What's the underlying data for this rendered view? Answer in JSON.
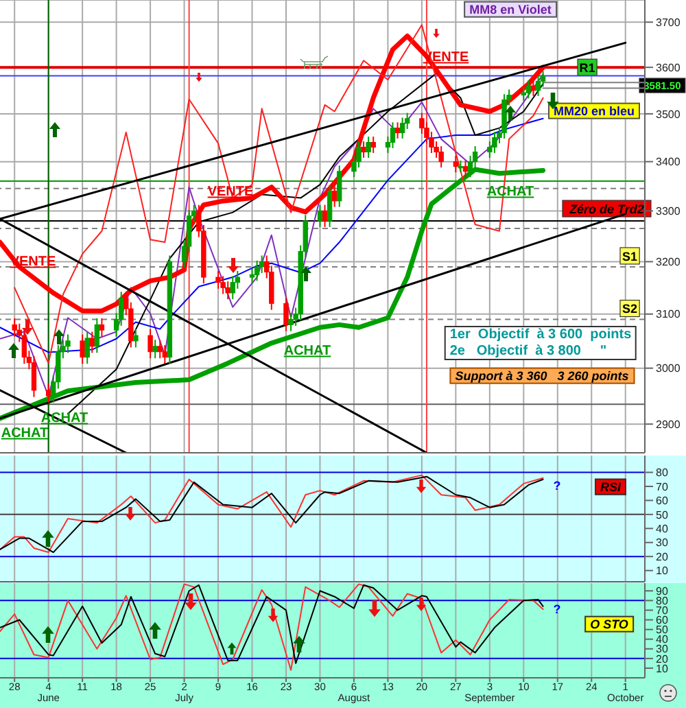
{
  "chart_data": [
    {
      "type": "candlestick",
      "log": true,
      "grid": true,
      "tick_labels": "y",
      "marker": "none",
      "xlim": [
        "--05-25",
        "--10-05"
      ],
      "xticks": [
        {
          "value": "--05-28",
          "label": "28"
        },
        {
          "value": "--06-04",
          "label": "4\nJune"
        },
        {
          "value": "--06-11",
          "label": "11"
        },
        {
          "value": "--06-18",
          "label": "18"
        },
        {
          "value": "--06-25",
          "label": "25"
        },
        {
          "value": "--07-02",
          "label": "2\nJuly"
        },
        {
          "value": "--07-09",
          "label": "9"
        },
        {
          "value": "--07-16",
          "label": "16"
        },
        {
          "value": "--07-23",
          "label": "23"
        },
        {
          "value": "--07-30",
          "label": "30"
        },
        {
          "value": "--08-06",
          "label": "6\nAugust"
        },
        {
          "value": "--08-13",
          "label": "13"
        },
        {
          "value": "--08-20",
          "label": "20"
        },
        {
          "value": "--08-27",
          "label": "27"
        },
        {
          "value": "--09-03",
          "label": "3\nSeptember"
        },
        {
          "value": "--09-10",
          "label": "10"
        },
        {
          "value": "--09-17",
          "label": "17"
        },
        {
          "value": "--09-24",
          "label": "24"
        },
        {
          "value": "--10-01",
          "label": "1\nOctober"
        }
      ],
      "ylim": [
        2850,
        3750
      ],
      "yticks": [
        2900,
        3000,
        3100,
        3200,
        3300,
        3400,
        3500,
        3600,
        3700
      ],
      "x": [
        "--05-28",
        "--05-29",
        "--05-30",
        "--05-31",
        "--06-01",
        "--06-04",
        "--06-05",
        "--06-06",
        "--06-07",
        "--06-08",
        "--06-11",
        "--06-12",
        "--06-13",
        "--06-14",
        "--06-15",
        "--06-18",
        "--06-19",
        "--06-20",
        "--06-21",
        "--06-22",
        "--06-25",
        "--06-26",
        "--06-27",
        "--06-28",
        "--06-29",
        "--07-02",
        "--07-03",
        "--07-04",
        "--07-05",
        "--07-06",
        "--07-09",
        "--07-10",
        "--07-11",
        "--07-12",
        "--07-13",
        "--07-16",
        "--07-17",
        "--07-18",
        "--07-19",
        "--07-20",
        "--07-23",
        "--07-24",
        "--07-25",
        "--07-26",
        "--07-27",
        "--07-30",
        "--07-31",
        "--08-01",
        "--08-02",
        "--08-03",
        "--08-06",
        "--08-07",
        "--08-08",
        "--08-09",
        "--08-10",
        "--08-13",
        "--08-14",
        "--08-15",
        "--08-16",
        "--08-17",
        "--08-20",
        "--08-21",
        "--08-22",
        "--08-23",
        "--08-24",
        "--08-27",
        "--08-28",
        "--08-29",
        "--08-30",
        "--08-31",
        "--09-03",
        "--09-04",
        "--09-05",
        "--09-06",
        "--09-07",
        "--09-10",
        "--09-11",
        "--09-12",
        "--09-13",
        "--09-14"
      ],
      "ohlc": [
        [
          3080,
          3092,
          3058,
          3070
        ],
        [
          3070,
          3082,
          3048,
          3060
        ],
        [
          3060,
          3072,
          3008,
          3020
        ],
        [
          3020,
          3032,
          2998,
          3010
        ],
        [
          3010,
          3022,
          2948,
          2960
        ],
        [
          2960,
          2972,
          2938,
          2950
        ],
        [
          2950,
          2987,
          2938,
          2975
        ],
        [
          2975,
          3042,
          2963,
          3030
        ],
        [
          3030,
          3052,
          3018,
          3040
        ],
        [
          3040,
          3062,
          3028,
          3050
        ],
        [
          3050,
          3062,
          3008,
          3020
        ],
        [
          3020,
          3067,
          3008,
          3055
        ],
        [
          3055,
          3067,
          3028,
          3040
        ],
        [
          3040,
          3092,
          3028,
          3080
        ],
        [
          3080,
          3092,
          3058,
          3070
        ],
        [
          3070,
          3102,
          3058,
          3090
        ],
        [
          3090,
          3142,
          3078,
          3130
        ],
        [
          3130,
          3142,
          3098,
          3110
        ],
        [
          3110,
          3122,
          3038,
          3050
        ],
        [
          3050,
          3072,
          3038,
          3060
        ],
        [
          3060,
          3072,
          3018,
          3030
        ],
        [
          3030,
          3052,
          3018,
          3040
        ],
        [
          3040,
          3052,
          3018,
          3030
        ],
        [
          3030,
          3042,
          3008,
          3020
        ],
        [
          3020,
          3212,
          3008,
          3200
        ],
        [
          3200,
          3242,
          3188,
          3230
        ],
        [
          3230,
          3302,
          3218,
          3290
        ],
        [
          3290,
          3312,
          3278,
          3300
        ],
        [
          3300,
          3312,
          3248,
          3260
        ],
        [
          3260,
          3272,
          3158,
          3170
        ],
        [
          3170,
          3182,
          3148,
          3160
        ],
        [
          3160,
          3172,
          3138,
          3150
        ],
        [
          3150,
          3162,
          3128,
          3140
        ],
        [
          3140,
          3172,
          3128,
          3160
        ],
        [
          3160,
          3182,
          3148,
          3170
        ],
        [
          3170,
          3187,
          3158,
          3175
        ],
        [
          3175,
          3202,
          3163,
          3190
        ],
        [
          3190,
          3212,
          3178,
          3200
        ],
        [
          3200,
          3212,
          3168,
          3180
        ],
        [
          3180,
          3192,
          3108,
          3120
        ],
        [
          3120,
          3132,
          3068,
          3080
        ],
        [
          3080,
          3102,
          3068,
          3090
        ],
        [
          3090,
          3112,
          3078,
          3100
        ],
        [
          3100,
          3232,
          3088,
          3220
        ],
        [
          3220,
          3292,
          3208,
          3280
        ],
        [
          3280,
          3312,
          3268,
          3300
        ],
        [
          3300,
          3312,
          3268,
          3280
        ],
        [
          3280,
          3352,
          3268,
          3340
        ],
        [
          3340,
          3352,
          3308,
          3320
        ],
        [
          3320,
          3392,
          3308,
          3380
        ],
        [
          3380,
          3412,
          3368,
          3400
        ],
        [
          3400,
          3442,
          3388,
          3430
        ],
        [
          3430,
          3442,
          3408,
          3420
        ],
        [
          3420,
          3452,
          3408,
          3440
        ],
        [
          3440,
          3452,
          3418,
          3430
        ],
        [
          3430,
          3452,
          3418,
          3440
        ],
        [
          3440,
          3482,
          3428,
          3470
        ],
        [
          3470,
          3482,
          3448,
          3460
        ],
        [
          3460,
          3492,
          3448,
          3480
        ],
        [
          3480,
          3502,
          3468,
          3490
        ],
        [
          3490,
          3502,
          3458,
          3470
        ],
        [
          3470,
          3482,
          3438,
          3450
        ],
        [
          3450,
          3462,
          3418,
          3430
        ],
        [
          3430,
          3442,
          3408,
          3420
        ],
        [
          3420,
          3432,
          3388,
          3400
        ],
        [
          3400,
          3412,
          3378,
          3390
        ],
        [
          3390,
          3402,
          3378,
          3390
        ],
        [
          3390,
          3402,
          3368,
          3380
        ],
        [
          3380,
          3412,
          3368,
          3400
        ],
        [
          3400,
          3432,
          3388,
          3420
        ],
        [
          3420,
          3442,
          3408,
          3430
        ],
        [
          3430,
          3462,
          3418,
          3450
        ],
        [
          3450,
          3472,
          3438,
          3460
        ],
        [
          3460,
          3542,
          3448,
          3530
        ],
        [
          3530,
          3552,
          3518,
          3540
        ],
        [
          3540,
          3557,
          3528,
          3545
        ],
        [
          3545,
          3572,
          3533,
          3560
        ],
        [
          3560,
          3572,
          3538,
          3550
        ],
        [
          3550,
          3582,
          3538,
          3570
        ],
        [
          3570,
          3592,
          3558,
          3581.5
        ]
      ],
      "colors": [
        "#ff0000",
        "#ff0000",
        "#ff0000",
        "#ff0000",
        "#ff0000",
        "#ff0000",
        "#00a000",
        "#00a000",
        "#00a000",
        "#00a000",
        "#ff0000",
        "#00a000",
        "#ff0000",
        "#00a000",
        "#ff0000",
        "#00a000",
        "#00a000",
        "#ff0000",
        "#ff0000",
        "#00a000",
        "#ff0000",
        "#00a000",
        "#ff0000",
        "#ff0000",
        "#00a000",
        "#00a000",
        "#00a000",
        "#00a000",
        "#ff0000",
        "#ff0000",
        "#ff0000",
        "#ff0000",
        "#ff0000",
        "#00a000",
        "#00a000",
        "#00a000",
        "#00a000",
        "#00a000",
        "#ff0000",
        "#ff0000",
        "#ff0000",
        "#00a000",
        "#00a000",
        "#00a000",
        "#00a000",
        "#00a000",
        "#ff0000",
        "#00a000",
        "#ff0000",
        "#00a000",
        "#00a000",
        "#00a000",
        "#ff0000",
        "#00a000",
        "#ff0000",
        "#00a000",
        "#00a000",
        "#ff0000",
        "#00a000",
        "#00a000",
        "#ff0000",
        "#ff0000",
        "#ff0000",
        "#ff0000",
        "#ff0000",
        "#ff0000",
        "#00a000",
        "#ff0000",
        "#00a000",
        "#00a000",
        "#00a000",
        "#00a000",
        "#00a000",
        "#00a000",
        "#00a000",
        "#00a000",
        "#00a000",
        "#ff0000",
        "#00a000",
        "#00a000"
      ],
      "series": [
        {
          "type": "line",
          "color": "#8030c0",
          "x": [
            "--05-25",
            "--05-30",
            "--06-04",
            "--06-08",
            "--06-14",
            "--06-18",
            "--06-21",
            "--06-25",
            "--06-28",
            "--07-03",
            "--07-05",
            "--07-12",
            "--07-17",
            "--07-20",
            "--07-24",
            "--07-30",
            "--08-02",
            "--08-07",
            "--08-10",
            "--08-15",
            "--08-20",
            "--08-24",
            "--08-30",
            "--09-04",
            "--09-10",
            "--09-14"
          ],
          "values": [
            3054,
            3067,
            2949,
            3093,
            3054,
            3067,
            3150,
            3101,
            3024,
            3348,
            3287,
            3113,
            3170,
            3252,
            3093,
            3326,
            3390,
            3447,
            3511,
            3461,
            3525,
            3447,
            3395,
            3438,
            3525,
            3585
          ]
        },
        {
          "type": "line",
          "color": "#0000ff",
          "x": [
            "--05-25",
            "--06-04",
            "--06-13",
            "--06-18",
            "--06-22",
            "--06-27",
            "--06-29",
            "--07-05",
            "--07-12",
            "--07-17",
            "--07-20",
            "--07-26",
            "--07-30",
            "--08-03",
            "--08-13",
            "--08-21",
            "--08-27",
            "--09-03",
            "--09-06",
            "--09-14"
          ],
          "values": [
            3075,
            3029,
            3034,
            3054,
            3085,
            3072,
            3093,
            3152,
            3170,
            3192,
            3197,
            3179,
            3197,
            3238,
            3362,
            3447,
            3455,
            3455,
            3467,
            3490
          ]
        },
        {
          "type": "line",
          "color": "#000000",
          "x": [
            "--06-08",
            "--06-18",
            "--06-25",
            "--06-29",
            "--07-05",
            "--07-12",
            "--07-18",
            "--07-26",
            "--07-30",
            "--08-03",
            "--08-07",
            "--08-13",
            "--08-23",
            "--08-28",
            "--08-31",
            "--09-05",
            "--09-10",
            "--09-14"
          ],
          "values": [
            2918,
            2998,
            3127,
            3206,
            3278,
            3297,
            3333,
            3326,
            3353,
            3410,
            3447,
            3505,
            3587,
            3534,
            3455,
            3470,
            3505,
            3564
          ]
        },
        {
          "type": "line",
          "color": "#ff0000",
          "x": [
            "--05-25",
            "--05-29",
            "--06-05",
            "--06-11",
            "--06-15",
            "--06-18",
            "--06-21",
            "--06-25",
            "--06-29",
            "--07-02",
            "--07-03",
            "--07-06",
            "--07-10",
            "--07-16",
            "--07-20",
            "--07-24",
            "--07-27",
            "--07-31",
            "--08-06",
            "--08-10",
            "--08-14",
            "--08-17",
            "--08-21",
            "--08-24",
            "--08-28",
            "--09-03",
            "--09-06",
            "--09-11",
            "--09-14"
          ],
          "values": [
            3238,
            3190,
            3140,
            3106,
            3106,
            3119,
            3145,
            3163,
            3170,
            3184,
            3265,
            3312,
            3320,
            3326,
            3348,
            3307,
            3298,
            3333,
            3404,
            3534,
            3639,
            3669,
            3624,
            3579,
            3519,
            3505,
            3519,
            3564,
            3600
          ]
        },
        {
          "type": "line",
          "color": "#00a000",
          "x": [
            "--05-25",
            "--06-08",
            "--06-22",
            "--07-03",
            "--07-11",
            "--07-20",
            "--07-30",
            "--08-03",
            "--08-07",
            "--08-13",
            "--08-17",
            "--08-20",
            "--08-22",
            "--08-27",
            "--08-31",
            "--09-05",
            "--09-14"
          ],
          "values": [
            2910,
            2959,
            2974,
            2979,
            3009,
            3046,
            3075,
            3080,
            3075,
            3093,
            3170,
            3260,
            3314,
            3353,
            3384,
            3376,
            3382
          ]
        },
        {
          "type": "line",
          "color": "#ff2020",
          "x": [
            "--05-28",
            "--06-04",
            "--06-07",
            "--06-11",
            "--06-15",
            "--06-20",
            "--06-25",
            "--06-28",
            "--07-03",
            "--07-09",
            "--07-12",
            "--07-16",
            "--07-18",
            "--07-24",
            "--07-31",
            "--08-02",
            "--08-08",
            "--08-13",
            "--08-20",
            "--08-23",
            "--08-27",
            "--08-31",
            "--09-05",
            "--09-07",
            "--09-12",
            "--09-14"
          ],
          "values": [
            3150,
            3009,
            3137,
            3215,
            3260,
            3461,
            3243,
            3238,
            3531,
            3438,
            3326,
            3353,
            3511,
            3297,
            3519,
            3505,
            3615,
            3573,
            3694,
            3573,
            3418,
            3273,
            3260,
            3447,
            3496,
            3534
          ]
        },
        {
          "type": "line",
          "color": "#000000",
          "x": [
            "--05-25",
            "--10-01"
          ],
          "values": [
            3284,
            3654
          ]
        },
        {
          "type": "line",
          "color": "#000000",
          "x": [
            "--05-25",
            "--10-01"
          ],
          "values": [
            2910,
            3294
          ]
        },
        {
          "type": "line",
          "color": "#000000",
          "x": [
            "--05-25",
            "--08-21"
          ],
          "values": [
            3284,
            2850
          ]
        },
        {
          "type": "line",
          "color": "#000000",
          "x": [
            "--05-25",
            "--06-20"
          ],
          "values": [
            2960,
            2850
          ]
        },
        {
          "type": "line",
          "color": "#808080",
          "x": [
            "--09-14",
            "--10-05"
          ],
          "values": [
            3567,
            3567
          ]
        },
        {
          "type": "line",
          "color": "#808080",
          "x": [
            "--09-14",
            "--10-05"
          ],
          "values": [
            3555,
            3555
          ]
        }
      ],
      "ref_lines": [
        {
          "axis": "y",
          "value": 3600,
          "label": "R1",
          "color": "#dd0000"
        },
        {
          "axis": "y",
          "value": 3581.5,
          "label": "3581.50",
          "color": "#4040ff"
        },
        {
          "axis": "y",
          "value": 3360,
          "color": "#00a000"
        },
        {
          "axis": "y",
          "value": 3280,
          "label": "Zéro de Trd2",
          "color": "#000000"
        },
        {
          "axis": "y",
          "value": 3345,
          "color": "#808080",
          "line_style": "dashed"
        },
        {
          "axis": "y",
          "value": 3265,
          "color": "#808080",
          "line_style": "dashed"
        },
        {
          "axis": "y",
          "value": 3190,
          "label": "S1",
          "color": "#808080",
          "line_style": "dashed"
        },
        {
          "axis": "y",
          "value": 3090,
          "label": "S2",
          "color": "#808080",
          "line_style": "dashed"
        },
        {
          "axis": "y",
          "value": 2935,
          "color": "#606060"
        },
        {
          "axis": "x",
          "value": "--06-04",
          "color": "#006000"
        },
        {
          "axis": "x",
          "value": "--07-03",
          "color": "#ff4040"
        },
        {
          "axis": "x",
          "value": "--08-21",
          "color": "#ff4040"
        }
      ],
      "annotations": [
        "MM8 en Violet",
        "MM20 en bleu",
        "1er  Objectif  à 3 600  points\n2e   Objectif  à 3 800     \"",
        "Support à 3 360   3 260 points",
        "VENTE",
        "VENTE",
        "VENTE",
        "ACHAT",
        "ACHAT",
        "ACHAT",
        "ACHAT"
      ]
    },
    {
      "type": "line",
      "title": "RSI",
      "grid": "x",
      "tick_labels": "y",
      "marker": "none",
      "xlim": [
        "--05-25",
        "--10-05"
      ],
      "xticks": [
        {
          "value": "--05-28",
          "label": "28"
        },
        {
          "value": "--06-04",
          "label": "4\nJune"
        },
        {
          "value": "--06-11",
          "label": "11"
        },
        {
          "value": "--06-18",
          "label": "18"
        },
        {
          "value": "--06-25",
          "label": "25"
        },
        {
          "value": "--07-02",
          "label": "2\nJuly"
        },
        {
          "value": "--07-09",
          "label": "9"
        },
        {
          "value": "--07-16",
          "label": "16"
        },
        {
          "value": "--07-23",
          "label": "23"
        },
        {
          "value": "--07-30",
          "label": "30"
        },
        {
          "value": "--08-06",
          "label": "6\nAugust"
        },
        {
          "value": "--08-13",
          "label": "13"
        },
        {
          "value": "--08-20",
          "label": "20"
        },
        {
          "value": "--08-27",
          "label": "27"
        },
        {
          "value": "--09-03",
          "label": "3\nSeptember"
        },
        {
          "value": "--09-10",
          "label": "10"
        },
        {
          "value": "--09-17",
          "label": "17"
        },
        {
          "value": "--09-24",
          "label": "24"
        },
        {
          "value": "--10-01",
          "label": "1\nOctober"
        }
      ],
      "ylim": [
        2,
        92
      ],
      "yticks": [
        10,
        20,
        30,
        40,
        50,
        60,
        70,
        80
      ],
      "series": [
        {
          "color": "#ff3030",
          "x": [
            "--05-25",
            "--05-28",
            "--05-30",
            "--06-01",
            "--06-04",
            "--06-08",
            "--06-14",
            "--06-19",
            "--06-21",
            "--06-26",
            "--06-28",
            "--07-03",
            "--07-09",
            "--07-13",
            "--07-19",
            "--07-24",
            "--07-27",
            "--07-30",
            "--08-02",
            "--08-08",
            "--08-14",
            "--08-20",
            "--08-24",
            "--08-29",
            "--08-31",
            "--09-05",
            "--09-10",
            "--09-14"
          ],
          "values": [
            25,
            34,
            34,
            26,
            23,
            47,
            44,
            57,
            63,
            44,
            46,
            75,
            57,
            54,
            66,
            41,
            64,
            67,
            64,
            74,
            73,
            78,
            64,
            62,
            53,
            57,
            72,
            76
          ]
        },
        {
          "color": "#000000",
          "x": [
            "--05-25",
            "--05-29",
            "--05-31",
            "--06-04",
            "--06-05",
            "--06-11",
            "--06-15",
            "--06-20",
            "--06-22",
            "--06-27",
            "--06-29",
            "--07-04",
            "--07-10",
            "--07-16",
            "--07-20",
            "--07-25",
            "--07-30",
            "--07-31",
            "--08-03",
            "--08-09",
            "--08-15",
            "--08-21",
            "--08-27",
            "--08-30",
            "--09-03",
            "--09-06",
            "--09-11",
            "--09-14"
          ],
          "values": [
            25,
            33,
            33,
            25,
            23,
            45,
            45,
            55,
            61,
            45,
            46,
            73,
            57,
            55,
            65,
            44,
            64,
            66,
            65,
            74,
            73,
            77,
            64,
            62,
            55,
            57,
            71,
            75
          ]
        }
      ],
      "ref_lines": [
        {
          "axis": "y",
          "value": 80,
          "color": "#0000dd"
        },
        {
          "axis": "y",
          "value": 50,
          "color": "#404040"
        },
        {
          "axis": "y",
          "value": 20,
          "color": "#0000dd"
        }
      ],
      "annotations": [
        "?"
      ]
    },
    {
      "type": "line",
      "title": "O STO",
      "grid": "x",
      "marker": "none",
      "xlim": [
        "--05-25",
        "--10-05"
      ],
      "xticks": [
        {
          "value": "--05-28",
          "label": "28"
        },
        {
          "value": "--06-04",
          "label": "4\nJune"
        },
        {
          "value": "--06-11",
          "label": "11"
        },
        {
          "value": "--06-18",
          "label": "18"
        },
        {
          "value": "--06-25",
          "label": "25"
        },
        {
          "value": "--07-02",
          "label": "2\nJuly"
        },
        {
          "value": "--07-09",
          "label": "9"
        },
        {
          "value": "--07-16",
          "label": "16"
        },
        {
          "value": "--07-23",
          "label": "23"
        },
        {
          "value": "--07-30",
          "label": "30"
        },
        {
          "value": "--08-06",
          "label": "6\nAugust"
        },
        {
          "value": "--08-13",
          "label": "13"
        },
        {
          "value": "--08-20",
          "label": "20"
        },
        {
          "value": "--08-27",
          "label": "27"
        },
        {
          "value": "--09-03",
          "label": "3\nSeptember"
        },
        {
          "value": "--09-10",
          "label": "10"
        },
        {
          "value": "--09-17",
          "label": "17"
        },
        {
          "value": "--09-24",
          "label": "24"
        },
        {
          "value": "--10-01",
          "label": "1\nOctober"
        }
      ],
      "ylim": [
        0,
        98
      ],
      "yticks": [
        10,
        20,
        30,
        40,
        50,
        60,
        70,
        80,
        90
      ],
      "series": [
        {
          "color": "#ff3030",
          "x": [
            "--05-25",
            "--05-28",
            "--06-01",
            "--06-04",
            "--06-08",
            "--06-14",
            "--06-18",
            "--06-20",
            "--06-25",
            "--06-27",
            "--07-02",
            "--07-04",
            "--07-10",
            "--07-12",
            "--07-18",
            "--07-20",
            "--07-24",
            "--07-27",
            "--08-01",
            "--08-03",
            "--08-07",
            "--08-09",
            "--08-14",
            "--08-17",
            "--08-20",
            "--08-24",
            "--08-27",
            "--08-30",
            "--09-03",
            "--09-07",
            "--09-12",
            "--09-14"
          ],
          "values": [
            48,
            66,
            24,
            21,
            80,
            30,
            62,
            85,
            19,
            21,
            97,
            94,
            14,
            19,
            91,
            76,
            8,
            94,
            80,
            73,
            97,
            94,
            64,
            87,
            82,
            26,
            39,
            24,
            60,
            81,
            80,
            71
          ]
        },
        {
          "color": "#000000",
          "x": [
            "--05-25",
            "--05-29",
            "--06-04",
            "--06-05",
            "--06-11",
            "--06-15",
            "--06-19",
            "--06-21",
            "--06-26",
            "--06-28",
            "--07-03",
            "--07-05",
            "--07-11",
            "--07-13",
            "--07-19",
            "--07-23",
            "--07-25",
            "--07-30",
            "--08-02",
            "--08-06",
            "--08-08",
            "--08-10",
            "--08-15",
            "--08-20",
            "--08-21",
            "--08-27",
            "--08-28",
            "--08-31",
            "--09-04",
            "--09-10",
            "--09-13",
            "--09-14"
          ],
          "values": [
            52,
            60,
            24,
            23,
            74,
            36,
            55,
            84,
            25,
            22,
            90,
            96,
            18,
            18,
            84,
            70,
            15,
            90,
            84,
            72,
            96,
            93,
            70,
            85,
            84,
            32,
            37,
            26,
            52,
            80,
            81,
            74
          ]
        }
      ],
      "ref_lines": [
        {
          "axis": "y",
          "value": 80,
          "color": "#0000dd"
        },
        {
          "axis": "y",
          "value": 20,
          "color": "#0000dd"
        }
      ],
      "annotations": [
        "?"
      ]
    }
  ]
}
